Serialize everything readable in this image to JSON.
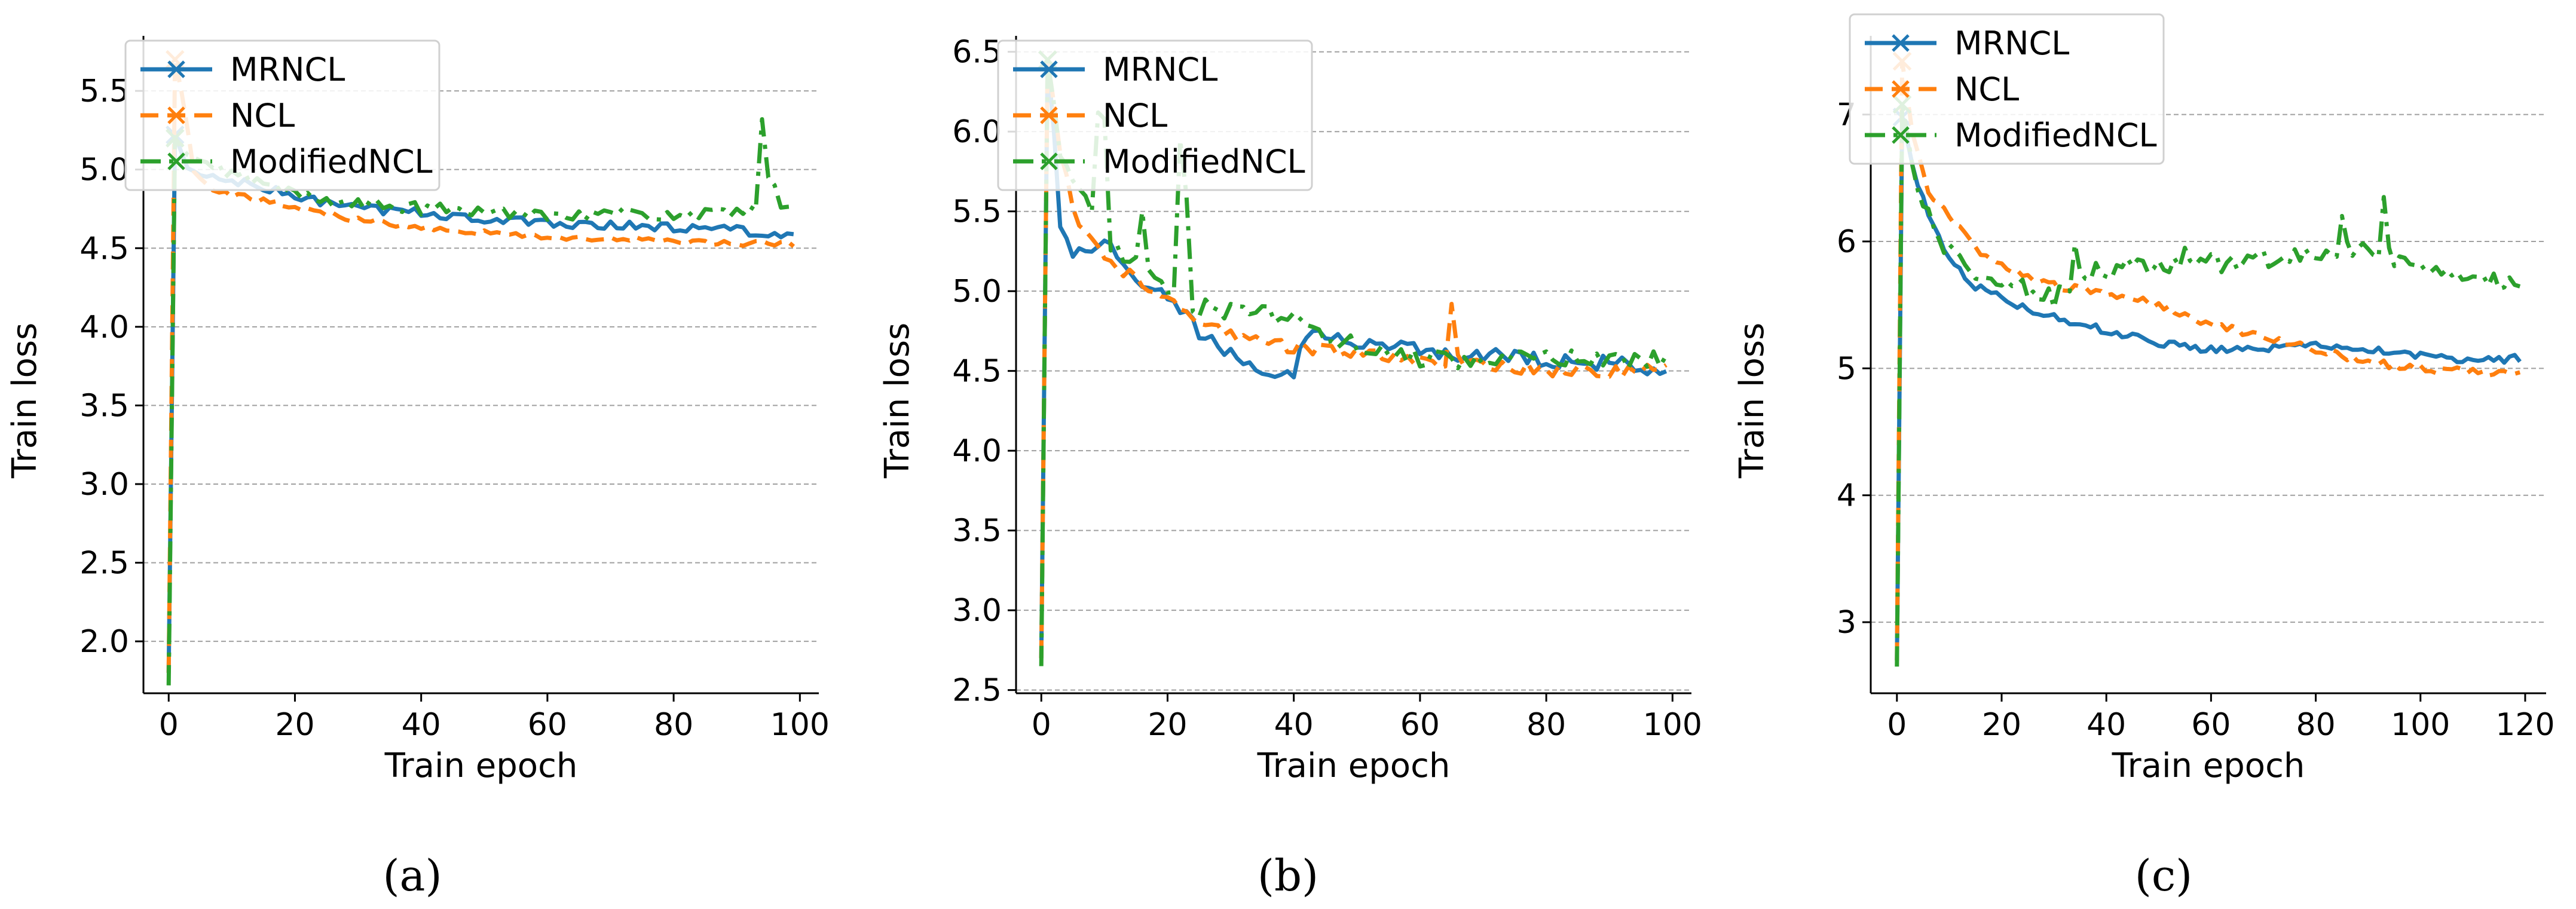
{
  "figure_captions": [
    "(a)",
    "(b)",
    "(c)"
  ],
  "colors": {
    "MRNCL": "#1f77b4",
    "NCL": "#ff7f0e",
    "ModifiedNCL": "#2ca02c",
    "grid": "#a0a0a0"
  },
  "chart_data": [
    {
      "type": "line",
      "caption": "(a)",
      "xlabel": "Train epoch",
      "ylabel": "Train loss",
      "xlim": [
        -4,
        103
      ],
      "ylim": [
        1.67,
        5.85
      ],
      "xticks": [
        0,
        20,
        40,
        60,
        80,
        100
      ],
      "yticks": [
        2.0,
        2.5,
        3.0,
        3.5,
        4.0,
        4.5,
        5.0,
        5.5
      ],
      "ytick_labels": [
        "2.0",
        "2.5",
        "3.0",
        "3.5",
        "4.0",
        "4.5",
        "5.0",
        "5.5"
      ],
      "grid": "horizontal-dashed",
      "legend_position": "top-left",
      "legend": [
        "MRNCL",
        "NCL",
        "ModifiedNCL"
      ],
      "epochs": 100,
      "series": [
        {
          "name": "MRNCL",
          "style": "solid",
          "start": 1.8,
          "anchors": [
            [
              1,
              5.22
            ],
            [
              3,
              5.0
            ],
            [
              6,
              4.95
            ],
            [
              10,
              4.93
            ],
            [
              15,
              4.88
            ],
            [
              20,
              4.83
            ],
            [
              30,
              4.75
            ],
            [
              40,
              4.73
            ],
            [
              50,
              4.68
            ],
            [
              60,
              4.66
            ],
            [
              70,
              4.65
            ],
            [
              80,
              4.63
            ],
            [
              90,
              4.62
            ],
            [
              99,
              4.57
            ]
          ],
          "noise": 0.03,
          "spikes": []
        },
        {
          "name": "NCL",
          "style": "dashed",
          "start": 1.8,
          "anchors": [
            [
              1,
              5.7
            ],
            [
              2,
              5.5
            ],
            [
              4,
              5.0
            ],
            [
              7,
              4.88
            ],
            [
              10,
              4.84
            ],
            [
              20,
              4.76
            ],
            [
              30,
              4.68
            ],
            [
              40,
              4.64
            ],
            [
              50,
              4.6
            ],
            [
              60,
              4.57
            ],
            [
              70,
              4.56
            ],
            [
              80,
              4.54
            ],
            [
              90,
              4.53
            ],
            [
              99,
              4.53
            ]
          ],
          "noise": 0.02,
          "spikes": []
        },
        {
          "name": "ModifiedNCL",
          "style": "dashdot",
          "start": 1.72,
          "anchors": [
            [
              1,
              5.2
            ],
            [
              3,
              5.08
            ],
            [
              6,
              5.02
            ],
            [
              10,
              4.98
            ],
            [
              20,
              4.84
            ],
            [
              30,
              4.78
            ],
            [
              40,
              4.75
            ],
            [
              50,
              4.73
            ],
            [
              60,
              4.72
            ],
            [
              70,
              4.72
            ],
            [
              80,
              4.71
            ],
            [
              90,
              4.72
            ],
            [
              99,
              4.75
            ]
          ],
          "noise": 0.04,
          "spikes": [
            [
              94,
              5.32
            ],
            [
              95,
              4.95
            ],
            [
              96,
              4.9
            ]
          ]
        }
      ]
    },
    {
      "type": "line",
      "caption": "(b)",
      "xlabel": "Train epoch",
      "ylabel": "Train loss",
      "xlim": [
        -4,
        103
      ],
      "ylim": [
        2.48,
        6.6
      ],
      "xticks": [
        0,
        20,
        40,
        60,
        80,
        100
      ],
      "yticks": [
        2.5,
        3.0,
        3.5,
        4.0,
        4.5,
        5.0,
        5.5,
        6.0,
        6.5
      ],
      "ytick_labels": [
        "2.5",
        "3.0",
        "3.5",
        "4.0",
        "4.5",
        "5.0",
        "5.5",
        "6.0",
        "6.5"
      ],
      "grid": "horizontal-dashed",
      "legend_position": "top-left",
      "legend": [
        "MRNCL",
        "NCL",
        "ModifiedNCL"
      ],
      "epochs": 100,
      "series": [
        {
          "name": "MRNCL",
          "style": "solid",
          "start": 2.7,
          "anchors": [
            [
              1,
              6.45
            ],
            [
              2,
              6.0
            ],
            [
              3,
              5.45
            ],
            [
              5,
              5.25
            ],
            [
              10,
              5.3
            ],
            [
              15,
              5.1
            ],
            [
              20,
              4.95
            ],
            [
              25,
              4.75
            ],
            [
              30,
              4.6
            ],
            [
              35,
              4.52
            ],
            [
              40,
              4.5
            ],
            [
              42,
              4.75
            ],
            [
              50,
              4.68
            ],
            [
              60,
              4.62
            ],
            [
              70,
              4.6
            ],
            [
              80,
              4.56
            ],
            [
              90,
              4.55
            ],
            [
              99,
              4.5
            ]
          ],
          "noise": 0.05,
          "spikes": []
        },
        {
          "name": "NCL",
          "style": "dashed",
          "start": 2.7,
          "anchors": [
            [
              1,
              6.45
            ],
            [
              3,
              5.9
            ],
            [
              5,
              5.5
            ],
            [
              8,
              5.3
            ],
            [
              12,
              5.15
            ],
            [
              18,
              5.0
            ],
            [
              25,
              4.8
            ],
            [
              30,
              4.72
            ],
            [
              40,
              4.65
            ],
            [
              50,
              4.62
            ],
            [
              60,
              4.55
            ],
            [
              70,
              4.55
            ],
            [
              80,
              4.5
            ],
            [
              90,
              4.5
            ],
            [
              99,
              4.5
            ]
          ],
          "noise": 0.04,
          "spikes": [
            [
              65,
              4.92
            ],
            [
              66,
              4.6
            ]
          ]
        },
        {
          "name": "ModifiedNCL",
          "style": "dashdot",
          "start": 2.65,
          "anchors": [
            [
              1,
              6.45
            ],
            [
              3,
              5.9
            ],
            [
              6,
              5.6
            ],
            [
              12,
              5.25
            ],
            [
              18,
              5.1
            ],
            [
              25,
              4.9
            ],
            [
              30,
              4.88
            ],
            [
              40,
              4.82
            ],
            [
              50,
              4.65
            ],
            [
              60,
              4.58
            ],
            [
              70,
              4.57
            ],
            [
              80,
              4.57
            ],
            [
              90,
              4.57
            ],
            [
              99,
              4.57
            ]
          ],
          "noise": 0.06,
          "spikes": [
            [
              9,
              6.12
            ],
            [
              10,
              6.08
            ],
            [
              16,
              5.5
            ],
            [
              22,
              5.95
            ],
            [
              23,
              5.6
            ]
          ]
        }
      ]
    },
    {
      "type": "line",
      "caption": "(c)",
      "xlabel": "Train epoch",
      "ylabel": "Train loss",
      "xlim": [
        -5,
        124
      ],
      "ylim": [
        2.44,
        7.62
      ],
      "xticks": [
        0,
        20,
        40,
        60,
        80,
        100,
        120
      ],
      "yticks": [
        3,
        4,
        5,
        6,
        7
      ],
      "ytick_labels": [
        "3",
        "4",
        "5",
        "6",
        "7"
      ],
      "grid": "horizontal-dashed",
      "legend_position": "top-left",
      "legend": [
        "MRNCL",
        "NCL",
        "ModifiedNCL"
      ],
      "epochs": 120,
      "series": [
        {
          "name": "MRNCL",
          "style": "solid",
          "start": 2.7,
          "anchors": [
            [
              1,
              6.98
            ],
            [
              3,
              6.6
            ],
            [
              6,
              6.2
            ],
            [
              10,
              5.85
            ],
            [
              15,
              5.65
            ],
            [
              20,
              5.55
            ],
            [
              30,
              5.4
            ],
            [
              40,
              5.3
            ],
            [
              50,
              5.2
            ],
            [
              60,
              5.15
            ],
            [
              70,
              5.15
            ],
            [
              75,
              5.2
            ],
            [
              80,
              5.2
            ],
            [
              90,
              5.15
            ],
            [
              100,
              5.1
            ],
            [
              110,
              5.05
            ],
            [
              119,
              5.08
            ]
          ],
          "noise": 0.03,
          "spikes": []
        },
        {
          "name": "NCL",
          "style": "dashed",
          "start": 2.7,
          "anchors": [
            [
              1,
              7.42
            ],
            [
              3,
              6.85
            ],
            [
              6,
              6.4
            ],
            [
              10,
              6.2
            ],
            [
              15,
              5.95
            ],
            [
              20,
              5.8
            ],
            [
              30,
              5.65
            ],
            [
              40,
              5.6
            ],
            [
              50,
              5.5
            ],
            [
              60,
              5.35
            ],
            [
              70,
              5.25
            ],
            [
              80,
              5.15
            ],
            [
              90,
              5.05
            ],
            [
              100,
              5.0
            ],
            [
              110,
              4.97
            ],
            [
              119,
              4.95
            ]
          ],
          "noise": 0.03,
          "spikes": []
        },
        {
          "name": "ModifiedNCL",
          "style": "dashdot",
          "start": 2.65,
          "anchors": [
            [
              1,
              7.08
            ],
            [
              3,
              6.6
            ],
            [
              6,
              6.2
            ],
            [
              10,
              5.9
            ],
            [
              15,
              5.75
            ],
            [
              20,
              5.7
            ],
            [
              30,
              5.55
            ],
            [
              35,
              5.75
            ],
            [
              40,
              5.78
            ],
            [
              50,
              5.8
            ],
            [
              60,
              5.82
            ],
            [
              70,
              5.85
            ],
            [
              80,
              5.9
            ],
            [
              90,
              5.95
            ],
            [
              100,
              5.75
            ],
            [
              110,
              5.7
            ],
            [
              119,
              5.68
            ]
          ],
          "noise": 0.08,
          "spikes": [
            [
              34,
              5.98
            ],
            [
              55,
              5.95
            ],
            [
              85,
              6.2
            ],
            [
              93,
              6.35
            ],
            [
              94,
              5.95
            ]
          ]
        }
      ]
    }
  ]
}
